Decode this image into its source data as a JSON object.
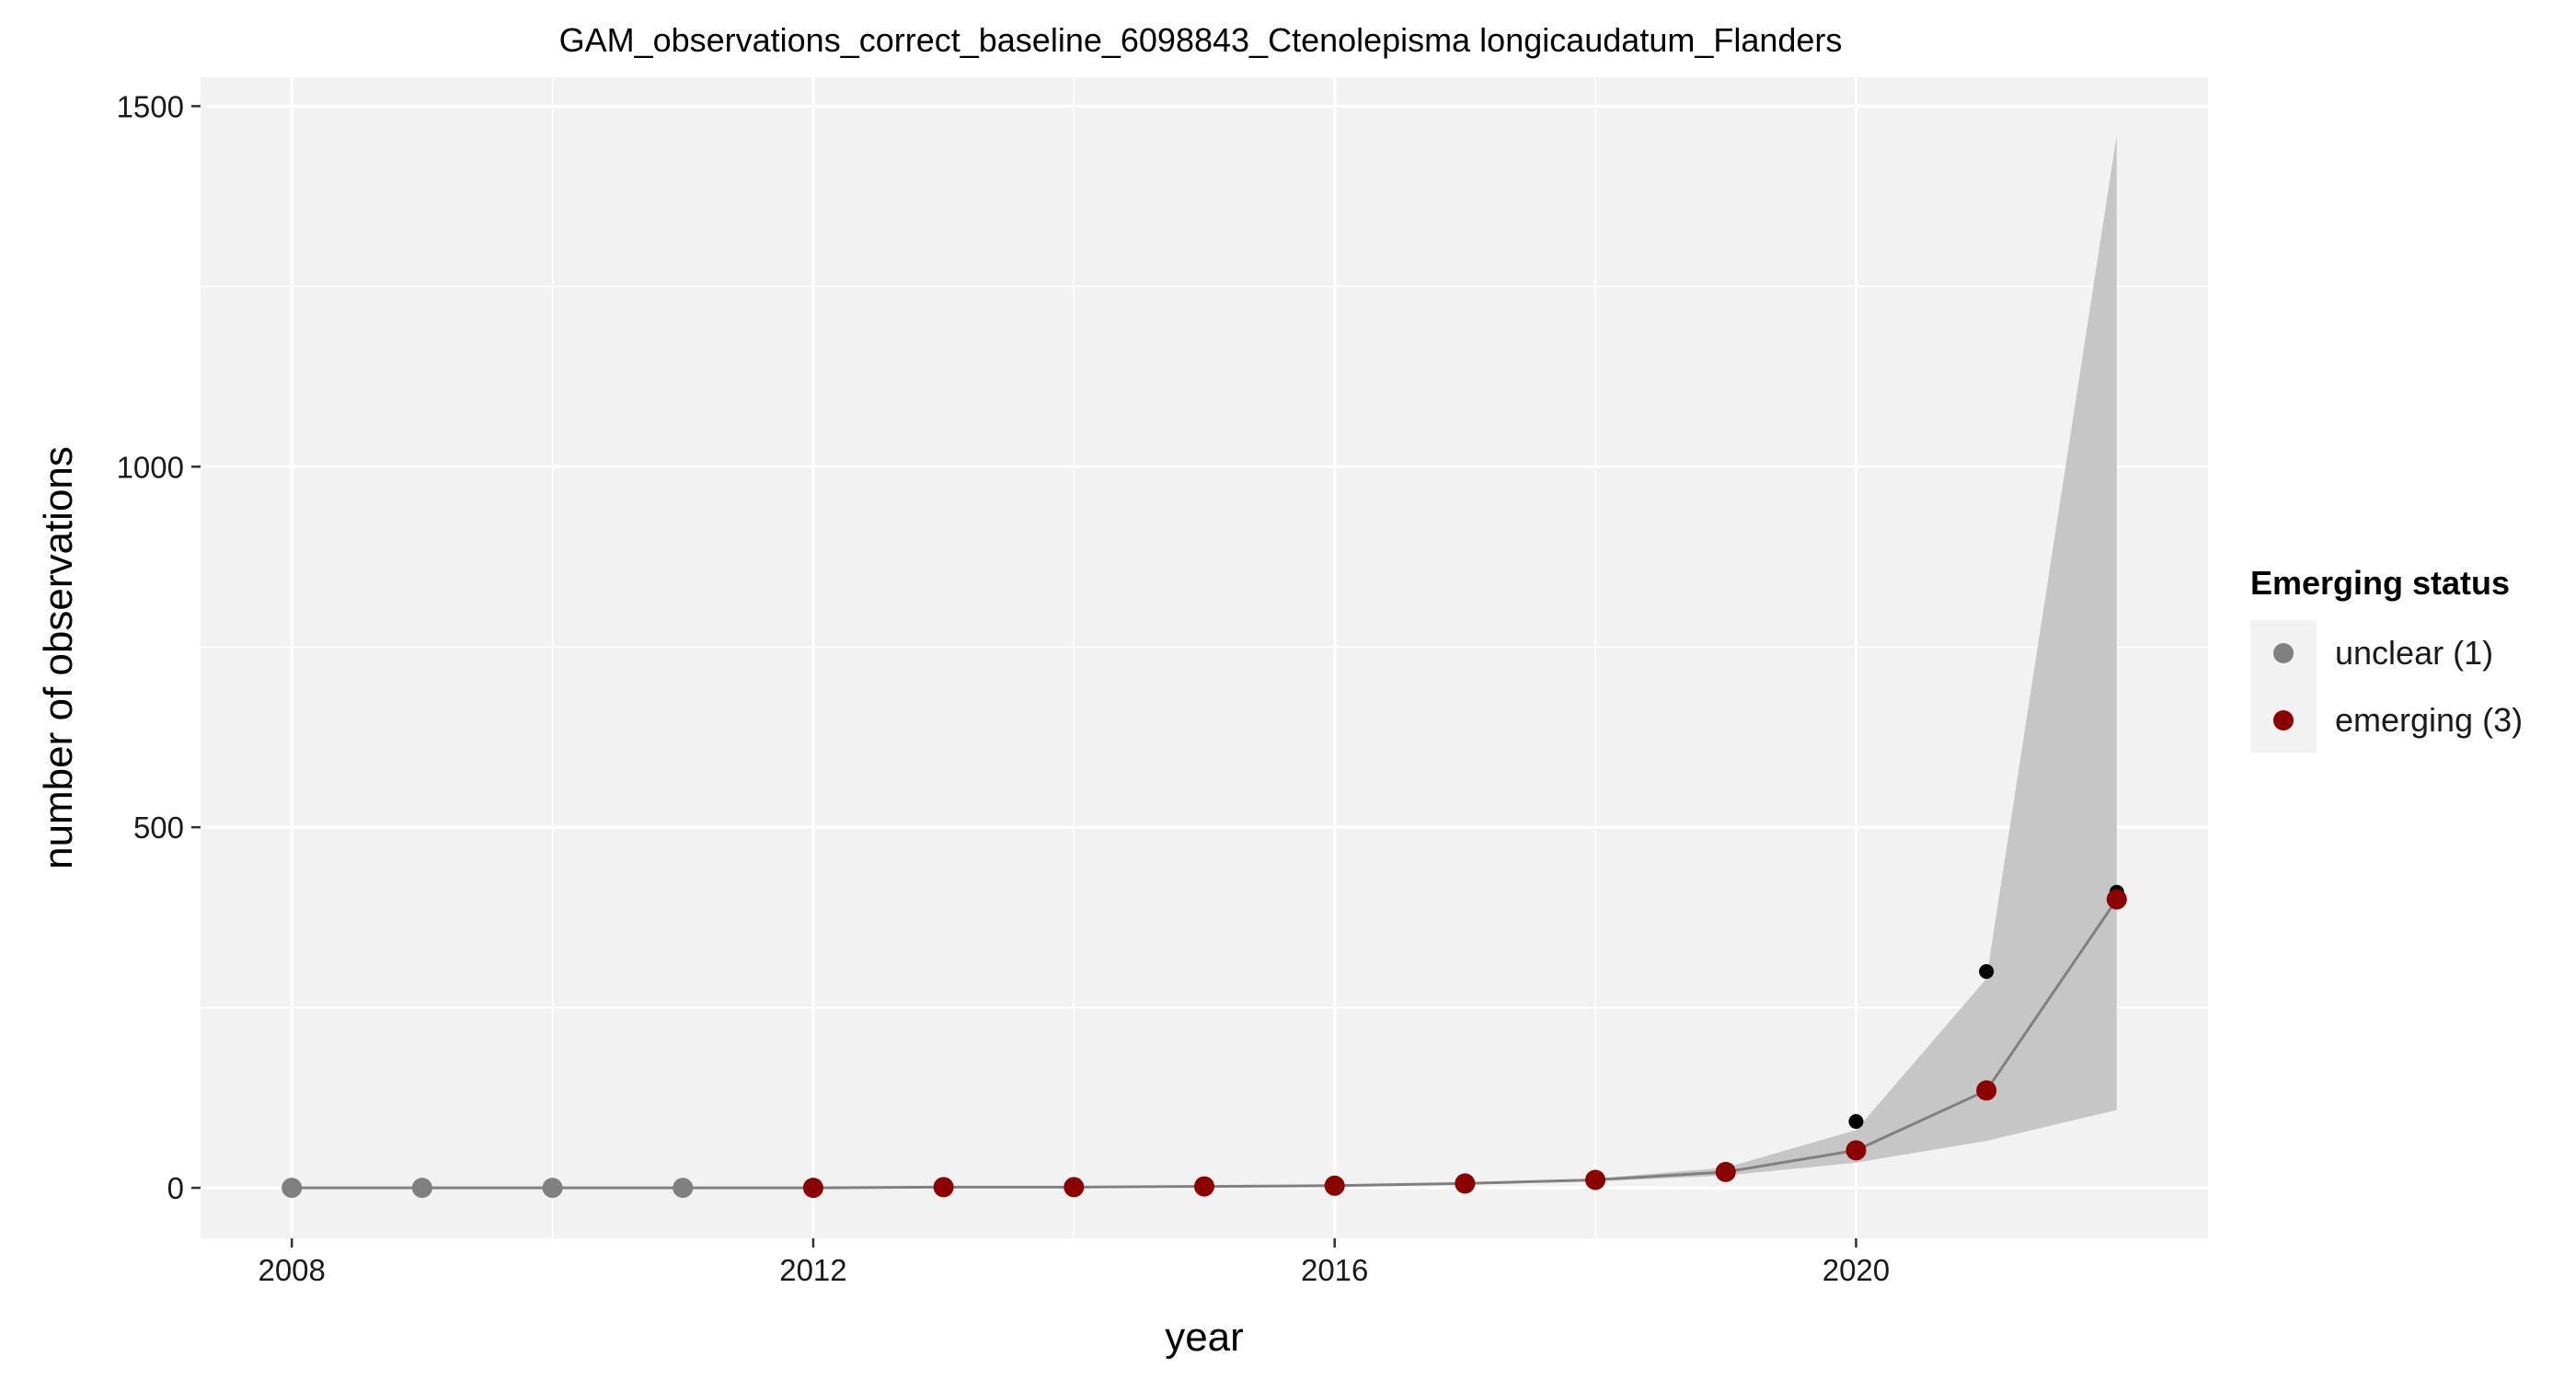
{
  "chart_data": {
    "type": "line",
    "title": "GAM_observations_correct_baseline_6098843_Ctenolepisma longicaudatum_Flanders",
    "xlabel": "year",
    "ylabel": "number of observations",
    "xlim": [
      2007.3,
      2022.7
    ],
    "ylim": [
      -70,
      1540
    ],
    "x_ticks": [
      2008,
      2012,
      2016,
      2020
    ],
    "x_tick_labels": [
      "2008",
      "2012",
      "2016",
      "2020"
    ],
    "y_ticks": [
      0,
      500,
      1000,
      1500
    ],
    "y_tick_labels": [
      "0",
      "500",
      "1000",
      "1500"
    ],
    "grid": true,
    "legend": {
      "title": "Emerging status",
      "position": "right",
      "entries": [
        {
          "label": "unclear (1)",
          "color": "#808080"
        },
        {
          "label": "emerging (3)",
          "color": "#8b0000"
        }
      ]
    },
    "colors": {
      "panel_background": "#f2f2f2",
      "grid": "#ffffff",
      "ribbon": "#c6c6c6",
      "fit_line": "#808080",
      "observed": "#000000"
    },
    "x": [
      2008,
      2009,
      2010,
      2011,
      2012,
      2013,
      2014,
      2015,
      2016,
      2017,
      2018,
      2019,
      2020,
      2021,
      2022
    ],
    "series": [
      {
        "name": "fit",
        "values": [
          0,
          0,
          0,
          0,
          0,
          1,
          1,
          2,
          3,
          6,
          11,
          22,
          52,
          135,
          400
        ]
      },
      {
        "name": "ribbon",
        "lower": [
          0,
          0,
          0,
          0,
          0,
          1,
          1,
          2,
          3,
          5,
          9,
          17,
          35,
          65,
          108
        ],
        "upper": [
          0,
          0,
          0,
          0,
          1,
          1,
          2,
          3,
          4,
          7,
          13,
          28,
          80,
          290,
          1460
        ]
      },
      {
        "name": "observed",
        "values": [
          0,
          0,
          0,
          0,
          0,
          1,
          1,
          2,
          3,
          6,
          11,
          22,
          92,
          300,
          410
        ]
      }
    ],
    "status": [
      "unclear (1)",
      "unclear (1)",
      "unclear (1)",
      "unclear (1)",
      "emerging (3)",
      "emerging (3)",
      "emerging (3)",
      "emerging (3)",
      "emerging (3)",
      "emerging (3)",
      "emerging (3)",
      "emerging (3)",
      "emerging (3)",
      "emerging (3)",
      "emerging (3)"
    ]
  }
}
